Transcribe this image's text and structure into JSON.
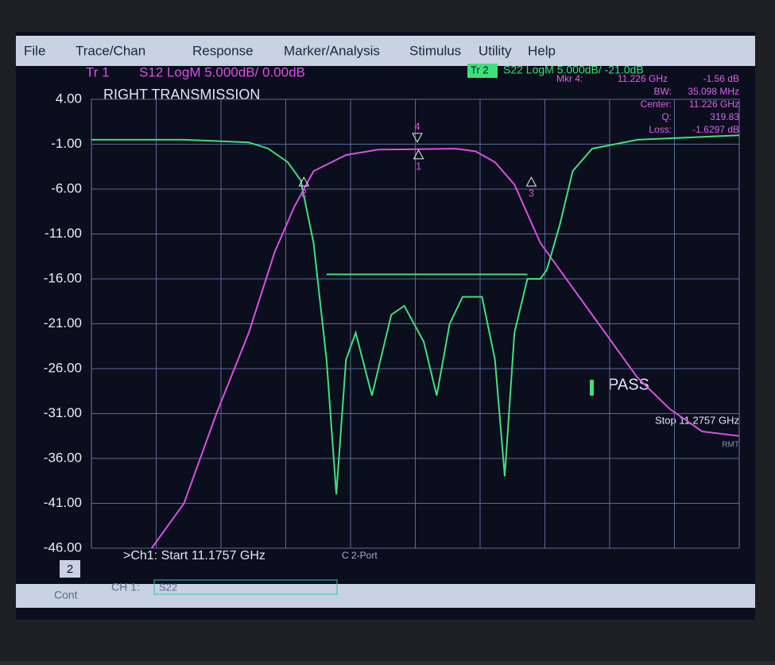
{
  "ui": {
    "menu": [
      "File",
      "Trace/Chan",
      "Response",
      "Marker/Analysis",
      "Stimulus",
      "Utility",
      "Help"
    ],
    "tr1_label": "Tr 1",
    "tr1_desc": "S12 LogM 5.000dB/ 0.00dB",
    "tr2_label": "Tr 2",
    "tr2_desc": "S22 LogM 5.000dB/ -21.0dB",
    "readout": [
      [
        "Mkr 4:",
        "11.226 GHz",
        "-1.56 dB"
      ],
      [
        "BW:",
        "35.098 MHz"
      ],
      [
        "Center:",
        "11.226 GHz"
      ],
      [
        "Q:",
        "319.83"
      ],
      [
        "Loss:",
        "-1.6297 dB"
      ]
    ],
    "pass": "PASS",
    "stop": "Stop 11.2757 GHz",
    "start": ">Ch1: Start 11.1757 GHz",
    "port": "C 2-Port",
    "channel": "2",
    "ch": "CH 1:",
    "param": "S22",
    "cont": "Cont",
    "rmt": "RMT"
  },
  "chart_data": {
    "type": "line",
    "title": "RIGHT TRANSMISSION",
    "xlim": [
      11.1757,
      11.2757
    ],
    "ylim": [
      -46,
      4
    ],
    "yticks": [
      {
        "value": 4,
        "label": "4.00"
      },
      {
        "value": -1,
        "label": "-1.00"
      },
      {
        "value": -6,
        "label": "-6.00"
      },
      {
        "value": -11,
        "label": "-11.00"
      },
      {
        "value": -16,
        "label": "-16.00"
      },
      {
        "value": -21,
        "label": "-21.00"
      },
      {
        "value": -26,
        "label": "-26.00"
      },
      {
        "value": -31,
        "label": "-31.00"
      },
      {
        "value": -36,
        "label": "-36.00"
      },
      {
        "value": -41,
        "label": "-41.00"
      },
      {
        "value": -46,
        "label": "-46.00"
      }
    ],
    "grid": true,
    "series": [
      {
        "color": "#d94fe6",
        "x": [
          11.185,
          11.19,
          11.195,
          11.2,
          11.204,
          11.207,
          11.21,
          11.215,
          11.22,
          11.226,
          11.232,
          11.235,
          11.238,
          11.241,
          11.245,
          11.25,
          11.255,
          11.26,
          11.265,
          11.27,
          11.2757
        ],
        "values": [
          -46,
          -41,
          -31,
          -22,
          -13,
          -8,
          -4,
          -2.2,
          -1.6,
          -1.56,
          -1.5,
          -1.8,
          -3,
          -5.5,
          -12,
          -17,
          -22,
          -27,
          -30.5,
          -33,
          -33.5
        ]
      },
      {
        "color": "#3fe07c",
        "x": [
          11.1757,
          11.19,
          11.2,
          11.203,
          11.206,
          11.208,
          11.21,
          11.212,
          11.2135,
          11.215,
          11.2165,
          11.219,
          11.222,
          11.224,
          11.227,
          11.229,
          11.231,
          11.233,
          11.236,
          11.238,
          11.2395,
          11.241,
          11.243,
          11.245,
          11.246,
          11.248,
          11.25,
          11.253,
          11.26,
          11.2757
        ],
        "values": [
          -0.5,
          -0.5,
          -0.8,
          -1.5,
          -3,
          -5,
          -12,
          -25,
          -40,
          -25,
          -22,
          -29,
          -20,
          -19,
          -23,
          -29,
          -21,
          -18,
          -18,
          -25,
          -38,
          -22,
          -16,
          -16,
          -15,
          -10,
          -4,
          -1.5,
          -0.5,
          0
        ]
      }
    ],
    "limit_line": {
      "value": -15.5,
      "x": [
        11.212,
        11.243
      ]
    },
    "markers": [
      {
        "label": "1",
        "x": 11.2262,
        "y": -1.56
      },
      {
        "label": "2",
        "x": 11.2085,
        "y": -4.6
      },
      {
        "label": "3",
        "x": 11.2436,
        "y": -4.6
      },
      {
        "label": "4",
        "x": 11.226,
        "y": -1.56
      }
    ]
  }
}
